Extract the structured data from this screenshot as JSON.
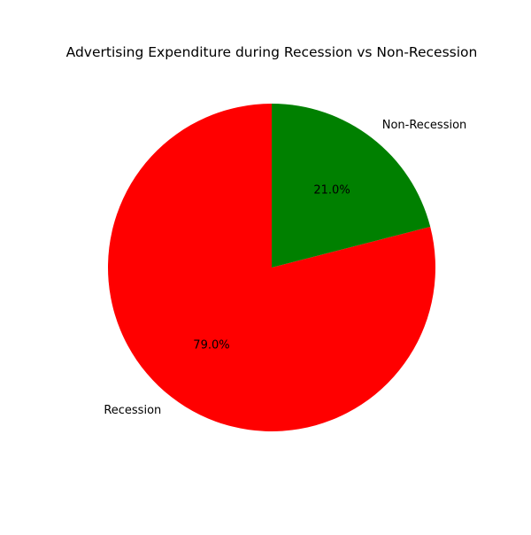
{
  "chart_data": {
    "type": "pie",
    "title": "Advertising Expenditure during Recession vs Non-Recession",
    "slices": [
      {
        "label": "Recession",
        "value": 79.0,
        "pct_label": "79.0%",
        "color": "#ff0000"
      },
      {
        "label": "Non-Recession",
        "value": 21.0,
        "pct_label": "21.0%",
        "color": "#008000"
      }
    ],
    "start_angle": "90 degrees (top)",
    "direction": "counter-clockwise",
    "legend": "none"
  }
}
